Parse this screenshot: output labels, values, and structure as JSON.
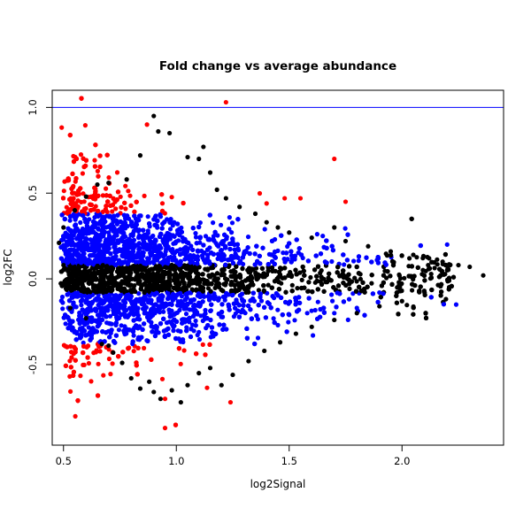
{
  "chart_data": {
    "type": "scatter",
    "title": "Fold change vs average abundance",
    "xlabel": "log2Signal",
    "ylabel": "log2FC",
    "xlim": [
      0.45,
      2.45
    ],
    "ylim": [
      -0.97,
      1.1
    ],
    "xticks": [
      "0.5",
      "1.0",
      "1.5",
      "2.0"
    ],
    "yticks": [
      "-0.5",
      "0.0",
      "0.5",
      "1.0"
    ],
    "xtick_values": [
      0.5,
      1.0,
      1.5,
      2.0
    ],
    "ytick_values": [
      -0.5,
      0.0,
      0.5,
      1.0
    ],
    "hline": {
      "y": 1.0,
      "color": "#0000ff"
    },
    "grid": false,
    "colors": {
      "black": "#000000",
      "blue": "#0000ff",
      "red": "#ff0000"
    },
    "series": [
      {
        "color": "black",
        "points": [
          [
            0.48,
            0.21
          ],
          [
            0.5,
            0.08
          ],
          [
            0.53,
            -0.17
          ],
          [
            0.6,
            -0.23
          ],
          [
            0.67,
            -0.38
          ],
          [
            0.7,
            -0.39
          ],
          [
            0.72,
            -0.43
          ],
          [
            0.76,
            -0.49
          ],
          [
            0.8,
            -0.58
          ],
          [
            0.84,
            -0.64
          ],
          [
            0.88,
            -0.6
          ],
          [
            0.9,
            -0.66
          ],
          [
            0.93,
            -0.7
          ],
          [
            0.98,
            -0.65
          ],
          [
            1.02,
            -0.72
          ],
          [
            1.05,
            -0.62
          ],
          [
            1.1,
            -0.55
          ],
          [
            1.15,
            -0.52
          ],
          [
            1.2,
            -0.62
          ],
          [
            1.25,
            -0.56
          ],
          [
            1.32,
            -0.48
          ],
          [
            1.39,
            -0.42
          ],
          [
            1.46,
            -0.37
          ],
          [
            1.53,
            -0.32
          ],
          [
            1.6,
            -0.28
          ],
          [
            1.7,
            -0.24
          ],
          [
            1.8,
            -0.2
          ],
          [
            1.9,
            -0.16
          ],
          [
            2.0,
            -0.13
          ],
          [
            2.1,
            -0.08
          ],
          [
            2.2,
            0.05
          ],
          [
            2.25,
            0.08
          ],
          [
            2.3,
            0.07
          ],
          [
            2.36,
            0.02
          ],
          [
            2.18,
            0.1
          ],
          [
            2.12,
            0.12
          ],
          [
            2.05,
            0.14
          ],
          [
            1.95,
            0.16
          ],
          [
            1.85,
            0.19
          ],
          [
            1.75,
            0.22
          ],
          [
            1.6,
            0.24
          ],
          [
            1.5,
            0.27
          ],
          [
            1.45,
            0.3
          ],
          [
            1.4,
            0.33
          ],
          [
            1.35,
            0.38
          ],
          [
            1.28,
            0.42
          ],
          [
            1.22,
            0.47
          ],
          [
            1.18,
            0.52
          ],
          [
            1.15,
            0.62
          ],
          [
            1.1,
            0.7
          ],
          [
            1.05,
            0.71
          ],
          [
            1.12,
            0.77
          ],
          [
            0.97,
            0.85
          ],
          [
            0.92,
            0.86
          ],
          [
            0.9,
            0.95
          ],
          [
            0.84,
            0.72
          ],
          [
            0.78,
            0.58
          ],
          [
            0.7,
            0.56
          ],
          [
            0.65,
            0.55
          ],
          [
            0.6,
            0.48
          ],
          [
            0.55,
            0.4
          ],
          [
            0.5,
            0.3
          ],
          [
            1.7,
            0.3
          ]
        ]
      },
      {
        "color": "red",
        "points": [
          [
            1.22,
            1.03
          ],
          [
            0.87,
            0.9
          ],
          [
            1.7,
            0.7
          ],
          [
            1.4,
            0.44
          ],
          [
            1.48,
            0.47
          ],
          [
            1.75,
            0.45
          ],
          [
            1.55,
            0.47
          ],
          [
            0.95,
            -0.87
          ],
          [
            1.24,
            -0.72
          ],
          [
            0.95,
            -0.7
          ]
        ]
      },
      {
        "color": "blue",
        "points": [
          [
            2.2,
            0.2
          ],
          [
            2.24,
            -0.15
          ],
          [
            1.9,
            -0.08
          ],
          [
            1.8,
            -0.17
          ],
          [
            1.7,
            -0.2
          ],
          [
            1.58,
            -0.2
          ],
          [
            1.5,
            -0.21
          ],
          [
            1.45,
            -0.27
          ]
        ]
      }
    ]
  }
}
